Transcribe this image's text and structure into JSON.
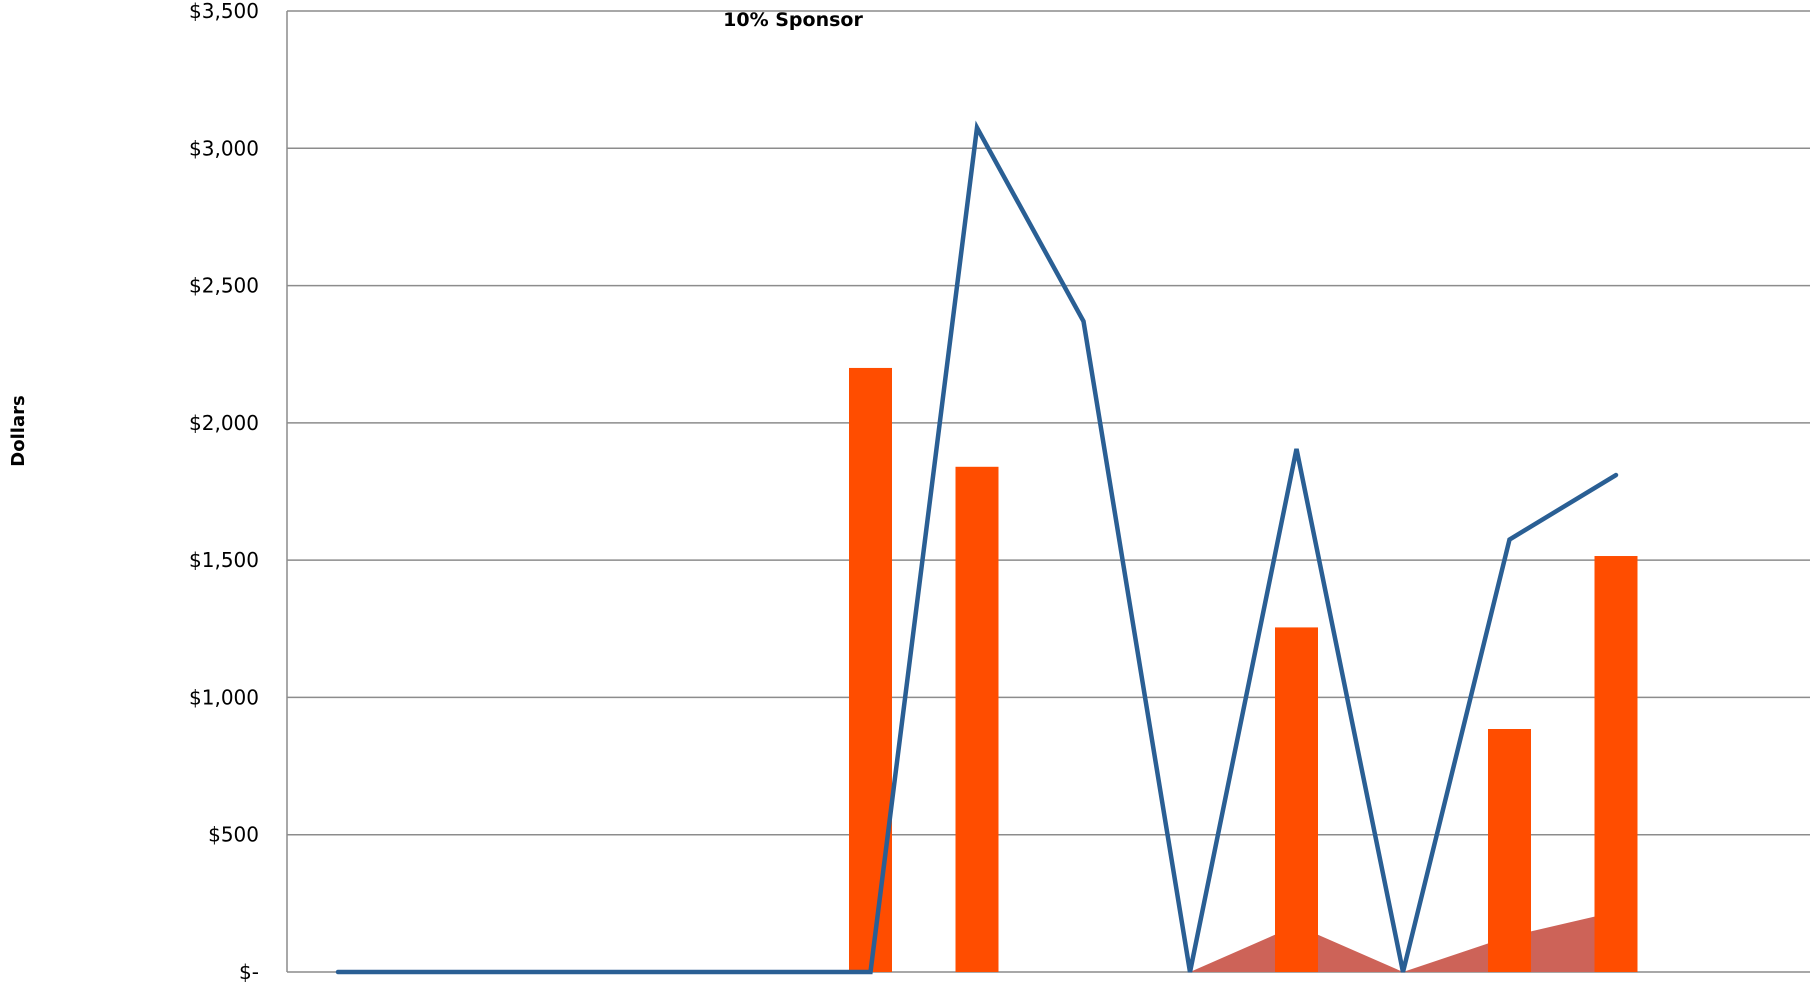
{
  "chart_data": {
    "type": "bar",
    "title": "10% Sponsor",
    "ylabel": "Dollars",
    "xlabel": "",
    "ylim": [
      0,
      3500
    ],
    "yticks": [
      {
        "value": 0,
        "label": "$-"
      },
      {
        "value": 500,
        "label": "$500"
      },
      {
        "value": 1000,
        "label": "$1,000"
      },
      {
        "value": 1500,
        "label": "$1,500"
      },
      {
        "value": 2000,
        "label": "$2,000"
      },
      {
        "value": 2500,
        "label": "$2,500"
      },
      {
        "value": 3000,
        "label": "$3,000"
      },
      {
        "value": 3500,
        "label": "$3,500"
      }
    ],
    "grid": true,
    "legend": "none",
    "categories": [
      "",
      "",
      "",
      "",
      "",
      "",
      "",
      "",
      "",
      "",
      "",
      "",
      ""
    ],
    "series": [
      {
        "kind": "area",
        "color": "#cd6358",
        "values": [
          0,
          0,
          0,
          0,
          0,
          0,
          0,
          0,
          0,
          170,
          0,
          130,
          220
        ]
      },
      {
        "kind": "bar",
        "color": "#ff4d00",
        "values": [
          0,
          0,
          0,
          0,
          0,
          2200,
          1840,
          0,
          0,
          1255,
          0,
          885,
          1515
        ]
      },
      {
        "kind": "line",
        "color": "#2a5f94",
        "values": [
          0,
          0,
          0,
          0,
          0,
          0,
          3075,
          2370,
          0,
          1905,
          0,
          1575,
          1810
        ]
      }
    ]
  }
}
